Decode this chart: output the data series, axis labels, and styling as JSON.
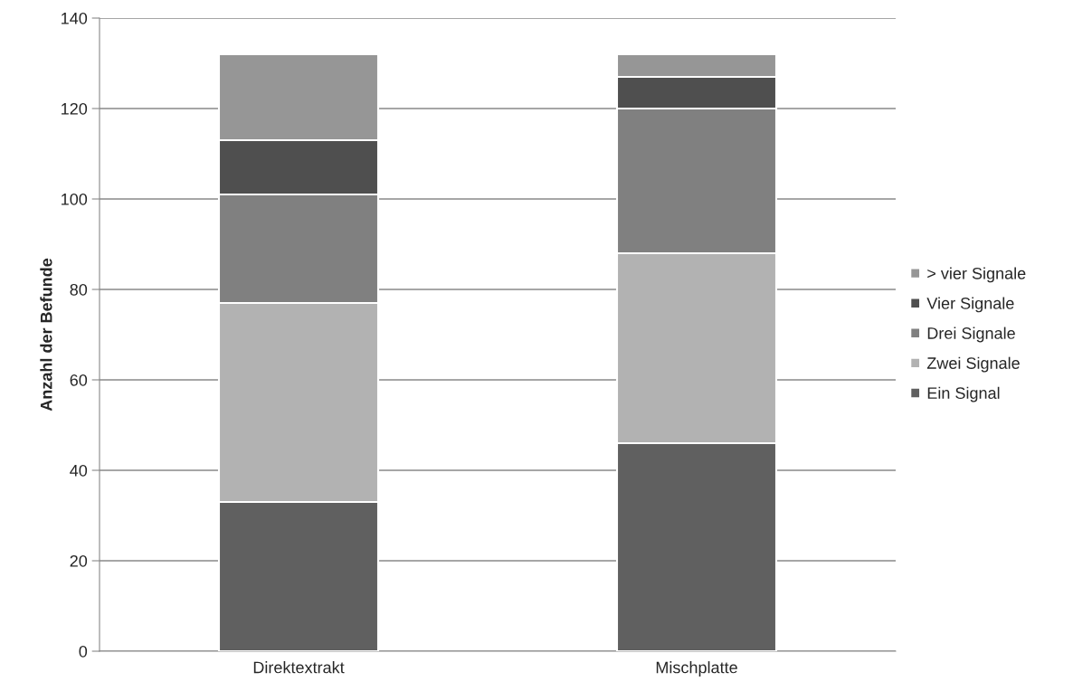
{
  "chart_data": {
    "type": "bar",
    "stacked": true,
    "ylabel": "Anzahl der Befunde",
    "categories": [
      "Direktextrakt",
      "Mischplatte"
    ],
    "series": [
      {
        "name": "Ein Signal",
        "color": "#606060",
        "values": [
          33,
          46
        ]
      },
      {
        "name": "Zwei Signale",
        "color": "#b2b2b2",
        "values": [
          44,
          42
        ]
      },
      {
        "name": "Drei Signale",
        "color": "#808080",
        "values": [
          24,
          32
        ]
      },
      {
        "name": "Vier Signale",
        "color": "#4f4f4f",
        "values": [
          12,
          7
        ]
      },
      {
        "name": "> vier Signale",
        "color": "#969696",
        "values": [
          19,
          5
        ]
      }
    ],
    "ylim": [
      0,
      140
    ],
    "yticks": [
      0,
      20,
      40,
      60,
      80,
      100,
      120,
      140
    ],
    "grid": "y",
    "legend": "right"
  }
}
